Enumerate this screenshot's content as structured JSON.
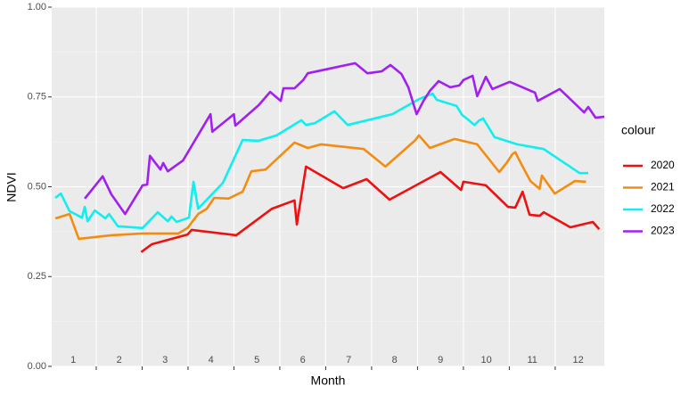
{
  "chart_data": {
    "type": "line",
    "x_label": "Month",
    "y_label": "NDVI",
    "legend_title": "colour",
    "legend": "right",
    "grid": true,
    "xlim": [
      0.53,
      12.57
    ],
    "xticks": [
      {
        "value": 1,
        "label": "1"
      },
      {
        "value": 2,
        "label": "2"
      },
      {
        "value": 3,
        "label": "3"
      },
      {
        "value": 4,
        "label": "4"
      },
      {
        "value": 5,
        "label": "5"
      },
      {
        "value": 6,
        "label": "6"
      },
      {
        "value": 7,
        "label": "7"
      },
      {
        "value": 8,
        "label": "8"
      },
      {
        "value": 9,
        "label": "9"
      },
      {
        "value": 10,
        "label": "10"
      },
      {
        "value": 11,
        "label": "11"
      },
      {
        "value": 12,
        "label": "12"
      }
    ],
    "ylim": [
      0,
      1
    ],
    "yticks": [
      {
        "value": 0,
        "label": "0.00"
      },
      {
        "value": 0.25,
        "label": "0.25"
      },
      {
        "value": 0.5,
        "label": "0.50"
      },
      {
        "value": 0.75,
        "label": "0.75"
      },
      {
        "value": 1,
        "label": "1.00"
      }
    ],
    "series": [
      {
        "name": "2020",
        "color": "#ee1111",
        "x": [
          2.48,
          2.71,
          3.49,
          3.58,
          4.55,
          5.33,
          5.82,
          5.87,
          6.07,
          6.88,
          7.39,
          7.89,
          9.0,
          9.45,
          9.5,
          9.99,
          10.47,
          10.63,
          10.79,
          10.94,
          11.16,
          11.25,
          11.83,
          12.32,
          12.46
        ],
        "values": [
          0.318,
          0.34,
          0.367,
          0.38,
          0.365,
          0.439,
          0.462,
          0.395,
          0.556,
          0.496,
          0.521,
          0.464,
          0.541,
          0.491,
          0.514,
          0.504,
          0.444,
          0.442,
          0.486,
          0.422,
          0.419,
          0.429,
          0.387,
          0.402,
          0.382
        ]
      },
      {
        "name": "2021",
        "color": "#f28c12",
        "x": [
          0.61,
          0.92,
          1.12,
          1.83,
          2.51,
          3.29,
          3.49,
          3.72,
          3.91,
          4.07,
          4.38,
          4.69,
          4.88,
          5.19,
          5.82,
          6.11,
          6.4,
          7.33,
          7.8,
          8.44,
          8.53,
          8.77,
          9.31,
          9.8,
          10.28,
          10.44,
          10.57,
          10.63,
          10.77,
          10.96,
          11.16,
          11.21,
          11.49,
          11.93,
          12.17
        ],
        "values": [
          0.412,
          0.424,
          0.355,
          0.365,
          0.37,
          0.37,
          0.385,
          0.424,
          0.439,
          0.469,
          0.467,
          0.486,
          0.543,
          0.548,
          0.623,
          0.608,
          0.618,
          0.605,
          0.556,
          0.628,
          0.643,
          0.608,
          0.633,
          0.618,
          0.541,
          0.566,
          0.591,
          0.596,
          0.561,
          0.516,
          0.494,
          0.531,
          0.481,
          0.516,
          0.514
        ]
      },
      {
        "name": "2022",
        "color": "#11eeee",
        "x": [
          0.61,
          0.73,
          0.92,
          1.19,
          1.25,
          1.31,
          1.47,
          1.7,
          1.78,
          1.97,
          2.51,
          2.84,
          3.06,
          3.14,
          3.25,
          3.52,
          3.62,
          3.72,
          4.26,
          4.69,
          5.04,
          5.43,
          5.97,
          6.07,
          6.26,
          6.69,
          6.98,
          7.95,
          8.53,
          8.83,
          8.92,
          9.35,
          9.47,
          9.6,
          9.74,
          9.85,
          9.93,
          10.18,
          10.67,
          11.25,
          12.03,
          12.22
        ],
        "values": [
          0.469,
          0.481,
          0.432,
          0.414,
          0.444,
          0.404,
          0.434,
          0.412,
          0.424,
          0.39,
          0.385,
          0.429,
          0.404,
          0.417,
          0.402,
          0.414,
          0.514,
          0.439,
          0.511,
          0.63,
          0.628,
          0.643,
          0.685,
          0.672,
          0.677,
          0.71,
          0.672,
          0.702,
          0.744,
          0.759,
          0.742,
          0.725,
          0.7,
          0.687,
          0.672,
          0.685,
          0.69,
          0.638,
          0.618,
          0.605,
          0.538,
          0.538
        ]
      },
      {
        "name": "2023",
        "color": "#a020f0",
        "x": [
          1.25,
          1.64,
          1.83,
          2.13,
          2.51,
          2.61,
          2.67,
          2.9,
          2.96,
          3.06,
          3.39,
          3.99,
          4.03,
          4.5,
          4.53,
          5.04,
          5.29,
          5.43,
          5.52,
          5.58,
          5.82,
          6.01,
          6.11,
          7.14,
          7.41,
          7.72,
          7.91,
          8.15,
          8.3,
          8.48,
          8.63,
          8.77,
          8.96,
          9.21,
          9.41,
          9.5,
          9.7,
          9.8,
          9.99,
          10.13,
          10.51,
          11.06,
          11.12,
          11.6,
          12.13,
          12.22,
          12.38,
          12.57
        ],
        "values": [
          0.467,
          0.529,
          0.479,
          0.424,
          0.504,
          0.506,
          0.586,
          0.548,
          0.566,
          0.543,
          0.573,
          0.702,
          0.653,
          0.702,
          0.67,
          0.727,
          0.764,
          0.749,
          0.739,
          0.774,
          0.774,
          0.797,
          0.816,
          0.844,
          0.816,
          0.821,
          0.839,
          0.814,
          0.777,
          0.702,
          0.739,
          0.767,
          0.794,
          0.777,
          0.782,
          0.797,
          0.809,
          0.752,
          0.806,
          0.772,
          0.792,
          0.762,
          0.739,
          0.772,
          0.707,
          0.722,
          0.692,
          0.695
        ]
      }
    ]
  }
}
